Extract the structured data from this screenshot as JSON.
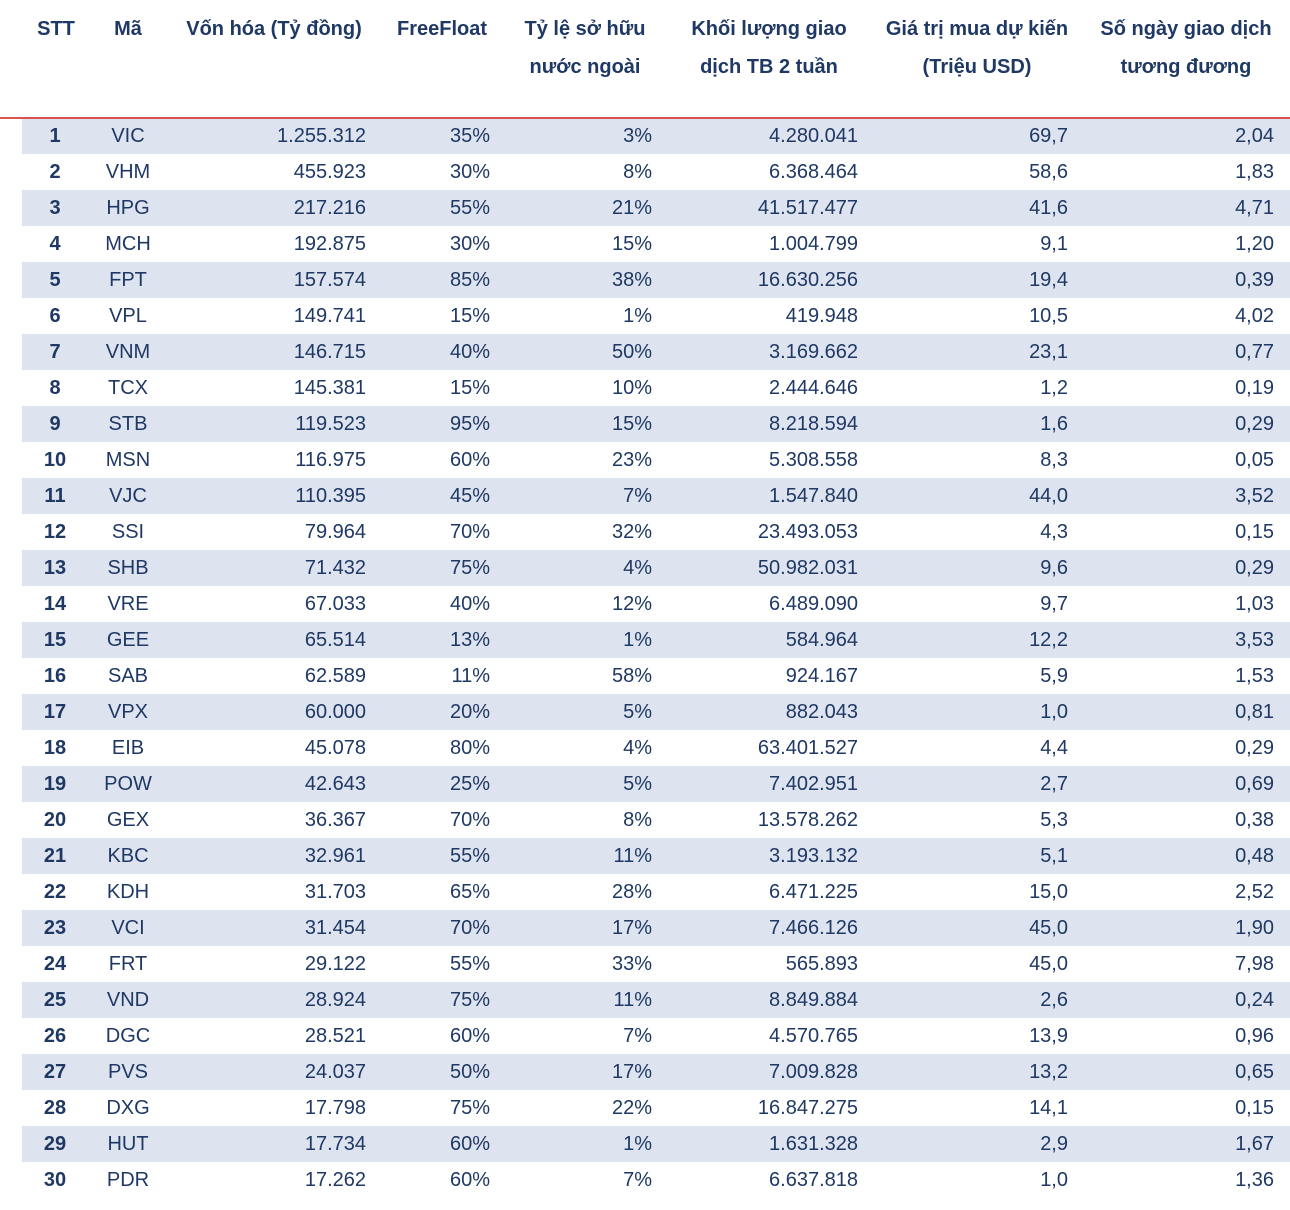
{
  "headers": [
    "STT",
    "Mã",
    "Vốn hóa (Tỷ đồng)",
    "FreeFloat",
    "Tỷ lệ sở hữu nước ngoài",
    "Khối lượng giao dịch TB 2 tuần",
    "Giá trị mua dự kiến (Triệu USD)",
    "Số ngày giao dịch tương đương"
  ],
  "rows": [
    [
      "1",
      "VIC",
      "1.255.312",
      "35%",
      "3%",
      "4.280.041",
      "69,7",
      "2,04"
    ],
    [
      "2",
      "VHM",
      "455.923",
      "30%",
      "8%",
      "6.368.464",
      "58,6",
      "1,83"
    ],
    [
      "3",
      "HPG",
      "217.216",
      "55%",
      "21%",
      "41.517.477",
      "41,6",
      "4,71"
    ],
    [
      "4",
      "MCH",
      "192.875",
      "30%",
      "15%",
      "1.004.799",
      "9,1",
      "1,20"
    ],
    [
      "5",
      "FPT",
      "157.574",
      "85%",
      "38%",
      "16.630.256",
      "19,4",
      "0,39"
    ],
    [
      "6",
      "VPL",
      "149.741",
      "15%",
      "1%",
      "419.948",
      "10,5",
      "4,02"
    ],
    [
      "7",
      "VNM",
      "146.715",
      "40%",
      "50%",
      "3.169.662",
      "23,1",
      "0,77"
    ],
    [
      "8",
      "TCX",
      "145.381",
      "15%",
      "10%",
      "2.444.646",
      "1,2",
      "0,19"
    ],
    [
      "9",
      "STB",
      "119.523",
      "95%",
      "15%",
      "8.218.594",
      "1,6",
      "0,29"
    ],
    [
      "10",
      "MSN",
      "116.975",
      "60%",
      "23%",
      "5.308.558",
      "8,3",
      "0,05"
    ],
    [
      "11",
      "VJC",
      "110.395",
      "45%",
      "7%",
      "1.547.840",
      "44,0",
      "3,52"
    ],
    [
      "12",
      "SSI",
      "79.964",
      "70%",
      "32%",
      "23.493.053",
      "4,3",
      "0,15"
    ],
    [
      "13",
      "SHB",
      "71.432",
      "75%",
      "4%",
      "50.982.031",
      "9,6",
      "0,29"
    ],
    [
      "14",
      "VRE",
      "67.033",
      "40%",
      "12%",
      "6.489.090",
      "9,7",
      "1,03"
    ],
    [
      "15",
      "GEE",
      "65.514",
      "13%",
      "1%",
      "584.964",
      "12,2",
      "3,53"
    ],
    [
      "16",
      "SAB",
      "62.589",
      "11%",
      "58%",
      "924.167",
      "5,9",
      "1,53"
    ],
    [
      "17",
      "VPX",
      "60.000",
      "20%",
      "5%",
      "882.043",
      "1,0",
      "0,81"
    ],
    [
      "18",
      "EIB",
      "45.078",
      "80%",
      "4%",
      "63.401.527",
      "4,4",
      "0,29"
    ],
    [
      "19",
      "POW",
      "42.643",
      "25%",
      "5%",
      "7.402.951",
      "2,7",
      "0,69"
    ],
    [
      "20",
      "GEX",
      "36.367",
      "70%",
      "8%",
      "13.578.262",
      "5,3",
      "0,38"
    ],
    [
      "21",
      "KBC",
      "32.961",
      "55%",
      "11%",
      "3.193.132",
      "5,1",
      "0,48"
    ],
    [
      "22",
      "KDH",
      "31.703",
      "65%",
      "28%",
      "6.471.225",
      "15,0",
      "2,52"
    ],
    [
      "23",
      "VCI",
      "31.454",
      "70%",
      "17%",
      "7.466.126",
      "45,0",
      "1,90"
    ],
    [
      "24",
      "FRT",
      "29.122",
      "55%",
      "33%",
      "565.893",
      "45,0",
      "7,98"
    ],
    [
      "25",
      "VND",
      "28.924",
      "75%",
      "11%",
      "8.849.884",
      "2,6",
      "0,24"
    ],
    [
      "26",
      "DGC",
      "28.521",
      "60%",
      "7%",
      "4.570.765",
      "13,9",
      "0,96"
    ],
    [
      "27",
      "PVS",
      "24.037",
      "50%",
      "17%",
      "7.009.828",
      "13,2",
      "0,65"
    ],
    [
      "28",
      "DXG",
      "17.798",
      "75%",
      "22%",
      "16.847.275",
      "14,1",
      "0,15"
    ],
    [
      "29",
      "HUT",
      "17.734",
      "60%",
      "1%",
      "1.631.328",
      "2,9",
      "1,67"
    ],
    [
      "30",
      "PDR",
      "17.262",
      "60%",
      "7%",
      "6.637.818",
      "1,0",
      "1,36"
    ]
  ]
}
